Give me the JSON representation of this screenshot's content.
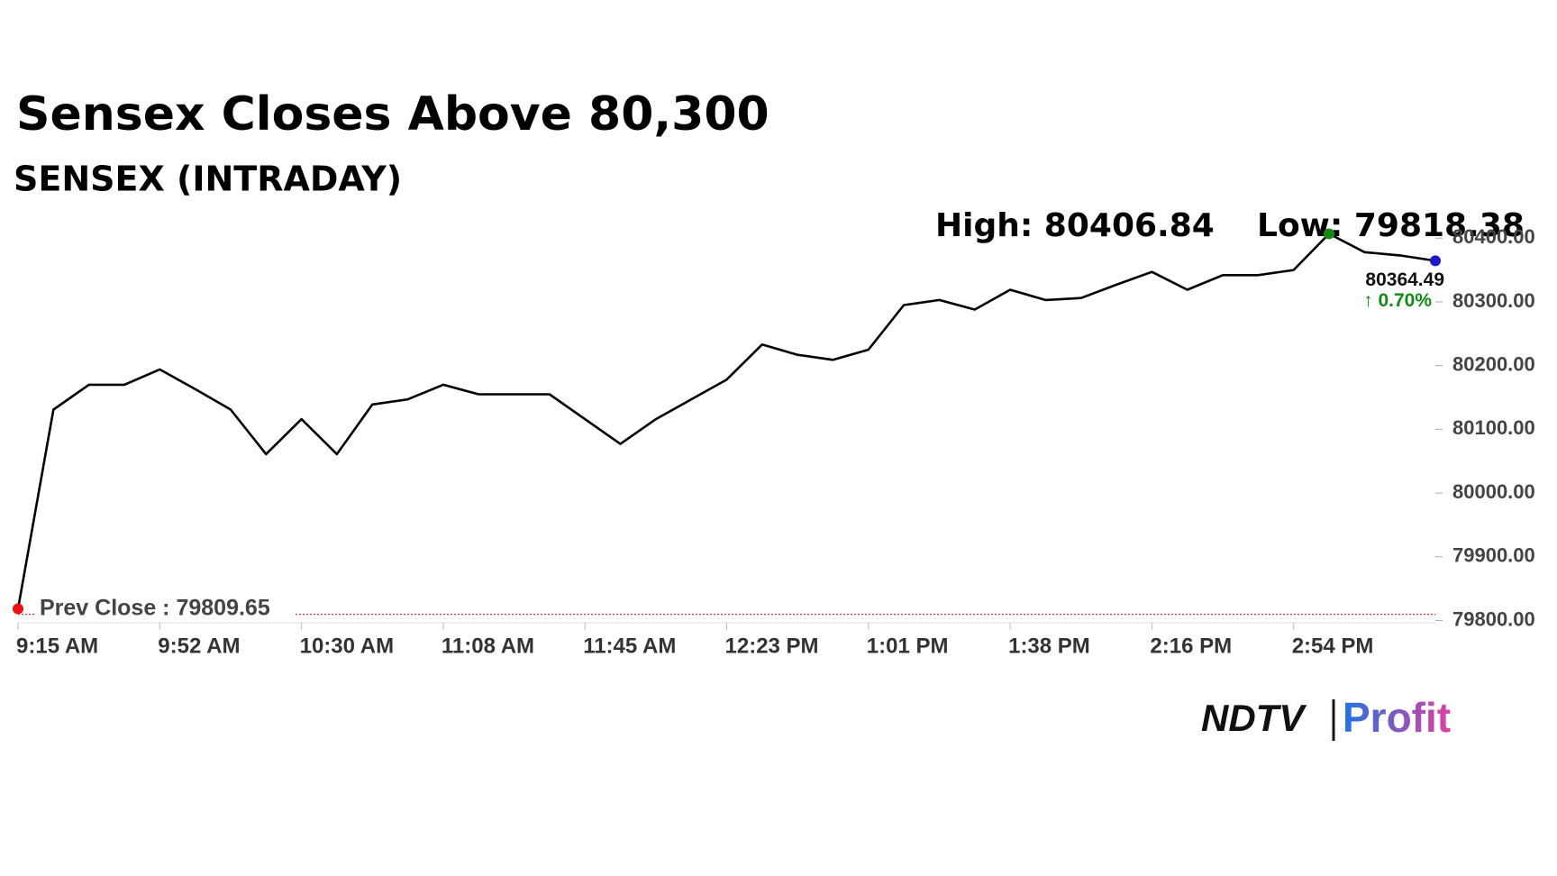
{
  "chart_data": {
    "type": "line",
    "title": "Sensex Closes Above 80,300",
    "subtitle": "SENSEX (INTRADAY)",
    "high_label": "High: 80406.84",
    "low_label": "Low: 79818.38",
    "categories": [
      "9:15 AM",
      null,
      null,
      null,
      "9:52 AM",
      null,
      null,
      null,
      "10:30 AM",
      null,
      null,
      null,
      "11:08 AM",
      null,
      null,
      null,
      "11:45 AM",
      null,
      null,
      null,
      "12:23 PM",
      null,
      null,
      null,
      "1:01 PM",
      null,
      null,
      null,
      "1:38 PM",
      null,
      null,
      null,
      "2:16 PM",
      null,
      null,
      null,
      "2:54 PM",
      null,
      null,
      null,
      null
    ],
    "values": [
      79818.38,
      80131,
      80170,
      80170,
      80194,
      80163,
      80131,
      80061,
      80116,
      80061,
      80139,
      80147,
      80170,
      80155,
      80155,
      80155,
      80116,
      80077,
      80116,
      80147,
      80178,
      80233,
      80217,
      80209,
      80225,
      80295,
      80303,
      80288,
      80319,
      80303,
      80306,
      80327,
      80347,
      80319,
      80342,
      80342,
      80350,
      80406.84,
      80378,
      80373,
      80364.49
    ],
    "color": "#000000",
    "high_color": "#138a13",
    "low_color": "#ee1111",
    "last_color": "#1a1acc",
    "change_label": "↑ 0.70%",
    "change_color": "#138a13",
    "prev_close": {
      "value": 79809.65,
      "label": "Prev Close : 79809.65"
    },
    "ylim": [
      79795,
      80440
    ],
    "yticks": [
      {
        "value": 79800,
        "label": "79800.00"
      },
      {
        "value": 79900,
        "label": "79900.00"
      },
      {
        "value": 80000,
        "label": "80000.00"
      },
      {
        "value": 80100,
        "label": "80100.00"
      },
      {
        "value": 80200,
        "label": "80200.00"
      },
      {
        "value": 80300,
        "label": "80300.00"
      },
      {
        "value": 80400,
        "label": "80400.00"
      }
    ],
    "grid": false
  },
  "logo": {
    "left": "NDTV",
    "right": "Profit"
  }
}
